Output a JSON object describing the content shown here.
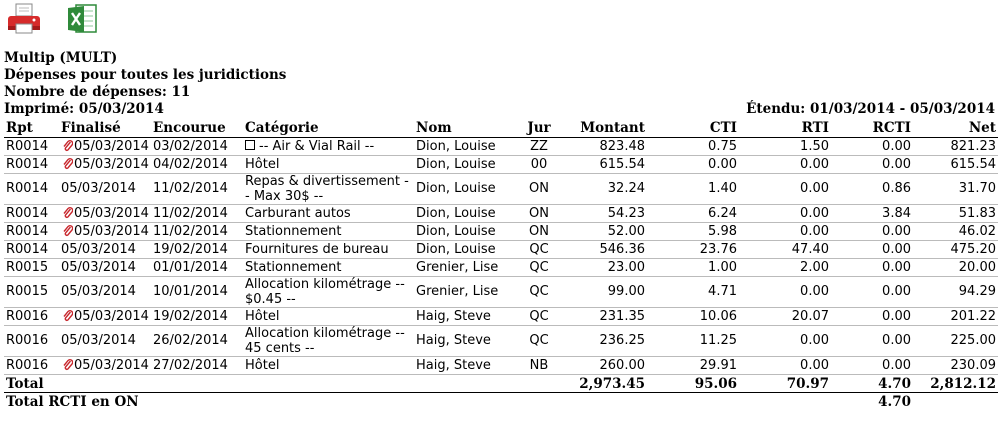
{
  "header": {
    "company": "Multip (MULT)",
    "title": "Dépenses pour toutes les juridictions",
    "count": "Nombre de dépenses: 11",
    "printed": "Imprimé: 05/03/2014",
    "range": "Étendu: 01/03/2014 - 05/03/2014"
  },
  "columns": [
    "Rpt",
    "Finalisé",
    "Encourue",
    "Catégorie",
    "Nom",
    "Jur",
    "Montant",
    "CTI",
    "RTI",
    "RCTI",
    "Net"
  ],
  "rows": [
    {
      "rpt": "R0014",
      "clip": true,
      "fin": "05/03/2014",
      "enc": "03/02/2014",
      "check": true,
      "cat": "-- Air & Vial Rail --",
      "nom": "Dion, Louise",
      "jur": "ZZ",
      "montant": "823.48",
      "cti": "0.75",
      "rti": "1.50",
      "rcti": "0.00",
      "net": "821.23"
    },
    {
      "rpt": "R0014",
      "clip": true,
      "fin": "05/03/2014",
      "enc": "04/02/2014",
      "check": false,
      "cat": "Hôtel",
      "nom": "Dion, Louise",
      "jur": "00",
      "montant": "615.54",
      "cti": "0.00",
      "rti": "0.00",
      "rcti": "0.00",
      "net": "615.54"
    },
    {
      "rpt": "R0014",
      "clip": false,
      "fin": "05/03/2014",
      "enc": "11/02/2014",
      "check": false,
      "cat": "Repas & divertissement -- Max 30$ --",
      "nom": "Dion, Louise",
      "jur": "ON",
      "montant": "32.24",
      "cti": "1.40",
      "rti": "0.00",
      "rcti": "0.86",
      "net": "31.70"
    },
    {
      "rpt": "R0014",
      "clip": true,
      "fin": "05/03/2014",
      "enc": "11/02/2014",
      "check": false,
      "cat": "Carburant autos",
      "nom": "Dion, Louise",
      "jur": "ON",
      "montant": "54.23",
      "cti": "6.24",
      "rti": "0.00",
      "rcti": "3.84",
      "net": "51.83"
    },
    {
      "rpt": "R0014",
      "clip": true,
      "fin": "05/03/2014",
      "enc": "11/02/2014",
      "check": false,
      "cat": "Stationnement",
      "nom": "Dion, Louise",
      "jur": "ON",
      "montant": "52.00",
      "cti": "5.98",
      "rti": "0.00",
      "rcti": "0.00",
      "net": "46.02"
    },
    {
      "rpt": "R0014",
      "clip": false,
      "fin": "05/03/2014",
      "enc": "19/02/2014",
      "check": false,
      "cat": "Fournitures de bureau",
      "nom": "Dion, Louise",
      "jur": "QC",
      "montant": "546.36",
      "cti": "23.76",
      "rti": "47.40",
      "rcti": "0.00",
      "net": "475.20"
    },
    {
      "rpt": "R0015",
      "clip": false,
      "fin": "05/03/2014",
      "enc": "01/01/2014",
      "check": false,
      "cat": "Stationnement",
      "nom": "Grenier, Lise",
      "jur": "QC",
      "montant": "23.00",
      "cti": "1.00",
      "rti": "2.00",
      "rcti": "0.00",
      "net": "20.00"
    },
    {
      "rpt": "R0015",
      "clip": false,
      "fin": "05/03/2014",
      "enc": "10/01/2014",
      "check": false,
      "cat": "Allocation kilométrage -- $0.45 --",
      "nom": "Grenier, Lise",
      "jur": "QC",
      "montant": "99.00",
      "cti": "4.71",
      "rti": "0.00",
      "rcti": "0.00",
      "net": "94.29"
    },
    {
      "rpt": "R0016",
      "clip": true,
      "fin": "05/03/2014",
      "enc": "19/02/2014",
      "check": false,
      "cat": "Hôtel",
      "nom": "Haig, Steve",
      "jur": "QC",
      "montant": "231.35",
      "cti": "10.06",
      "rti": "20.07",
      "rcti": "0.00",
      "net": "201.22"
    },
    {
      "rpt": "R0016",
      "clip": false,
      "fin": "05/03/2014",
      "enc": "26/02/2014",
      "check": false,
      "cat": "Allocation kilométrage -- 45 cents --",
      "nom": "Haig, Steve",
      "jur": "QC",
      "montant": "236.25",
      "cti": "11.25",
      "rti": "0.00",
      "rcti": "0.00",
      "net": "225.00"
    },
    {
      "rpt": "R0016",
      "clip": true,
      "fin": "05/03/2014",
      "enc": "27/02/2014",
      "check": false,
      "cat": "Hôtel",
      "nom": "Haig, Steve",
      "jur": "NB",
      "montant": "260.00",
      "cti": "29.91",
      "rti": "0.00",
      "rcti": "0.00",
      "net": "230.09"
    }
  ],
  "total": {
    "label": "Total",
    "montant": "2,973.45",
    "cti": "95.06",
    "rti": "70.97",
    "rcti": "4.70",
    "net": "2,812.12"
  },
  "total_rcti": {
    "label": "Total RCTI en ON",
    "rcti": "4.70"
  },
  "icons": {
    "print": "printer-icon",
    "excel": "excel-icon"
  },
  "colors": {
    "printer_red": "#d62b2b",
    "excel_green": "#2f8a3a"
  }
}
